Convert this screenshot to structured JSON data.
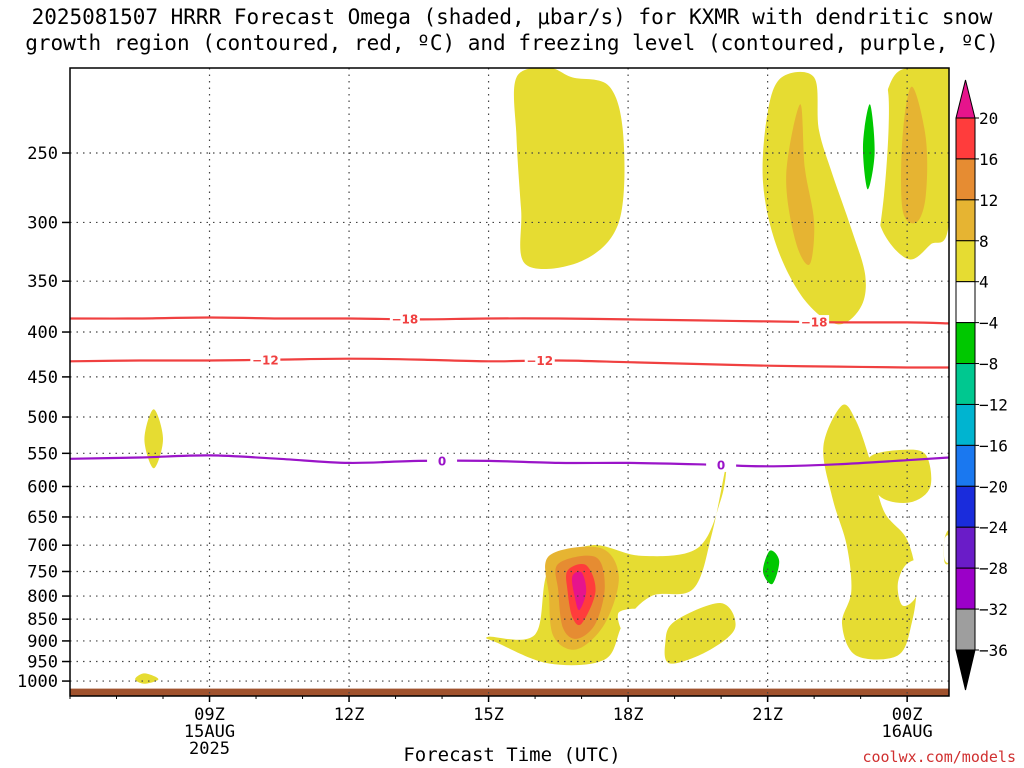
{
  "title": {
    "line1": "2025081507 HRRR Forecast Omega (shaded, μbar/s) for KXMR with dendritic snow",
    "line2": "growth region (contoured, red, ºC) and freezing level (contoured, purple, ºC)"
  },
  "credit": "coolwx.com/models",
  "chart_data": {
    "type": "heatmap",
    "xlabel": "Forecast Time (UTC)",
    "ylabel": "",
    "x_range_hours": [
      6,
      24.9
    ],
    "x_ticks": [
      {
        "hour": 9,
        "line1": "09Z",
        "line2": "15AUG",
        "line3": "2025"
      },
      {
        "hour": 12,
        "line1": "12Z",
        "line2": "",
        "line3": ""
      },
      {
        "hour": 15,
        "line1": "15Z",
        "line2": "",
        "line3": ""
      },
      {
        "hour": 18,
        "line1": "18Z",
        "line2": "",
        "line3": ""
      },
      {
        "hour": 21,
        "line1": "21Z",
        "line2": "",
        "line3": ""
      },
      {
        "hour": 24,
        "line1": "00Z",
        "line2": "16AUG",
        "line3": ""
      }
    ],
    "y_axis": "pressure (hPa), log scale, inverted",
    "y_range": [
      1040,
      200
    ],
    "y_ticks": [
      250,
      300,
      350,
      400,
      450,
      500,
      550,
      600,
      650,
      700,
      750,
      800,
      850,
      900,
      950,
      1000
    ],
    "colorbar": {
      "levels": [
        -36,
        -32,
        -28,
        -24,
        -20,
        -16,
        -12,
        -8,
        -4,
        4,
        8,
        12,
        16,
        20
      ],
      "labels": [
        "20",
        "16",
        "12",
        "8",
        "4",
        "-4",
        "-8",
        "-12",
        "-16",
        "-20",
        "-24",
        "-28",
        "-32",
        "-36"
      ],
      "colors": [
        "#9e9e9e",
        "#9b00c8",
        "#6a1cc8",
        "#1a2cdc",
        "#1a78f0",
        "#00b4d0",
        "#00c890",
        "#00c800",
        "#ffffff",
        "#e6dc32",
        "#e6b432",
        "#e68c32",
        "#ff3c3c",
        "#e6148c"
      ],
      "under_color": "#000000",
      "over_color": "#e6148c"
    },
    "contours": [
      {
        "label": "-18",
        "color": "#f04040",
        "label_hours": [
          13.2,
          22.0
        ],
        "points": [
          [
            6,
            386
          ],
          [
            7.5,
            386
          ],
          [
            9,
            385
          ],
          [
            10.5,
            386
          ],
          [
            12,
            386
          ],
          [
            13.5,
            387
          ],
          [
            15,
            386
          ],
          [
            16.5,
            386
          ],
          [
            18,
            387
          ],
          [
            19.5,
            388
          ],
          [
            21,
            389
          ],
          [
            22.5,
            390
          ],
          [
            24,
            390
          ],
          [
            24.9,
            391
          ]
        ]
      },
      {
        "label": "-12",
        "color": "#f04040",
        "label_hours": [
          10.2,
          16.1
        ],
        "points": [
          [
            6,
            432
          ],
          [
            7.5,
            431
          ],
          [
            9,
            431
          ],
          [
            10.5,
            430
          ],
          [
            12,
            429
          ],
          [
            13.5,
            430
          ],
          [
            15,
            432
          ],
          [
            16.5,
            431
          ],
          [
            18,
            433
          ],
          [
            19.5,
            435
          ],
          [
            21,
            437
          ],
          [
            22.5,
            438
          ],
          [
            24,
            439
          ],
          [
            24.9,
            439
          ]
        ]
      },
      {
        "label": "0",
        "color": "#9a14c8",
        "label_hours": [
          14.0,
          20.0
        ],
        "points": [
          [
            6,
            558
          ],
          [
            7.5,
            556
          ],
          [
            9,
            553
          ],
          [
            10.5,
            558
          ],
          [
            12,
            564
          ],
          [
            13.5,
            561
          ],
          [
            15,
            561
          ],
          [
            16.5,
            564
          ],
          [
            18,
            564
          ],
          [
            19.5,
            566
          ],
          [
            21,
            569
          ],
          [
            22.5,
            566
          ],
          [
            24,
            560
          ],
          [
            24.9,
            556
          ]
        ]
      }
    ],
    "shaded_regions": [
      {
        "value": 4,
        "points": [
          [
            15.6,
            205
          ],
          [
            16.3,
            200
          ],
          [
            16.8,
            205
          ],
          [
            17.6,
            210
          ],
          [
            17.9,
            240
          ],
          [
            17.8,
            300
          ],
          [
            17.0,
            332
          ],
          [
            15.8,
            335
          ],
          [
            15.7,
            290
          ],
          [
            15.6,
            240
          ]
        ]
      },
      {
        "value": 4,
        "points": [
          [
            21.3,
            205
          ],
          [
            22.0,
            205
          ],
          [
            22.1,
            235
          ],
          [
            22.4,
            265
          ],
          [
            22.8,
            305
          ],
          [
            23.1,
            345
          ],
          [
            23.0,
            375
          ],
          [
            22.5,
            392
          ],
          [
            21.8,
            368
          ],
          [
            21.2,
            320
          ],
          [
            20.9,
            270
          ],
          [
            21.0,
            225
          ]
        ]
      },
      {
        "value": 4,
        "points": [
          [
            24.4,
            200
          ],
          [
            24.9,
            200
          ],
          [
            24.9,
            300
          ],
          [
            24.5,
            318
          ],
          [
            24.0,
            330
          ],
          [
            23.4,
            300
          ],
          [
            23.3,
            250
          ],
          [
            23.7,
            205
          ]
        ]
      },
      {
        "value": 4,
        "points": [
          [
            7.8,
            490
          ],
          [
            8.0,
            530
          ],
          [
            7.8,
            572
          ],
          [
            7.6,
            530
          ]
        ]
      },
      {
        "value": 4,
        "points": [
          [
            7.6,
            980
          ],
          [
            7.9,
            995
          ],
          [
            7.6,
            1007
          ],
          [
            7.4,
            995
          ]
        ]
      },
      {
        "value": 4,
        "points": [
          [
            22.6,
            485
          ],
          [
            22.9,
            505
          ],
          [
            23.2,
            560
          ],
          [
            23.5,
            640
          ],
          [
            24.0,
            690
          ],
          [
            24.2,
            770
          ],
          [
            24.1,
            858
          ],
          [
            23.8,
            935
          ],
          [
            22.9,
            935
          ],
          [
            22.6,
            860
          ],
          [
            22.8,
            790
          ],
          [
            22.7,
            700
          ],
          [
            22.4,
            620
          ],
          [
            22.2,
            540
          ]
        ]
      },
      {
        "value": 4,
        "points": [
          [
            23.2,
            555
          ],
          [
            23.9,
            545
          ],
          [
            24.4,
            552
          ],
          [
            24.5,
            600
          ],
          [
            24.1,
            625
          ],
          [
            23.5,
            620
          ],
          [
            23.2,
            590
          ]
        ]
      },
      {
        "value": 4,
        "points": [
          [
            15.0,
            890
          ],
          [
            16.0,
            885
          ],
          [
            16.3,
            745
          ],
          [
            17.2,
            700
          ],
          [
            18.3,
            720
          ],
          [
            19.5,
            705
          ],
          [
            20.0,
            620
          ],
          [
            20.1,
            570
          ],
          [
            19.8,
            680
          ],
          [
            19.4,
            785
          ],
          [
            18.5,
            800
          ],
          [
            17.9,
            860
          ],
          [
            17.5,
            945
          ],
          [
            16.3,
            955
          ],
          [
            15.2,
            905
          ]
        ]
      },
      {
        "value": 4,
        "points": [
          [
            19.0,
            855
          ],
          [
            20.0,
            815
          ],
          [
            20.3,
            870
          ],
          [
            19.7,
            925
          ],
          [
            18.9,
            955
          ],
          [
            18.8,
            905
          ]
        ]
      },
      {
        "value": 4,
        "points": [
          [
            24.8,
            690
          ],
          [
            24.9,
            675
          ],
          [
            24.9,
            730
          ],
          [
            24.8,
            730
          ]
        ]
      },
      {
        "value": 8,
        "points": [
          [
            21.7,
            220
          ],
          [
            21.8,
            260
          ],
          [
            22.0,
            300
          ],
          [
            21.9,
            335
          ],
          [
            21.6,
            315
          ],
          [
            21.4,
            265
          ]
        ]
      },
      {
        "value": 8,
        "points": [
          [
            24.1,
            210
          ],
          [
            24.4,
            240
          ],
          [
            24.4,
            280
          ],
          [
            24.2,
            300
          ],
          [
            23.9,
            290
          ],
          [
            23.9,
            240
          ]
        ]
      },
      {
        "value": 8,
        "points": [
          [
            16.3,
            720
          ],
          [
            17.4,
            705
          ],
          [
            17.8,
            760
          ],
          [
            17.5,
            860
          ],
          [
            16.9,
            920
          ],
          [
            16.4,
            890
          ],
          [
            16.3,
            800
          ]
        ]
      },
      {
        "value": 12,
        "points": [
          [
            16.5,
            735
          ],
          [
            17.3,
            722
          ],
          [
            17.5,
            780
          ],
          [
            17.3,
            860
          ],
          [
            16.9,
            895
          ],
          [
            16.6,
            870
          ],
          [
            16.5,
            790
          ]
        ]
      },
      {
        "value": 16,
        "points": [
          [
            16.7,
            748
          ],
          [
            17.1,
            738
          ],
          [
            17.3,
            790
          ],
          [
            17.0,
            860
          ],
          [
            16.8,
            845
          ],
          [
            16.7,
            790
          ]
        ]
      },
      {
        "value": 20,
        "points": [
          [
            16.8,
            760
          ],
          [
            17.0,
            752
          ],
          [
            17.1,
            790
          ],
          [
            16.95,
            830
          ],
          [
            16.85,
            800
          ]
        ]
      },
      {
        "value": -4,
        "points": [
          [
            16.5,
            550
          ],
          [
            17.2,
            545
          ],
          [
            17.8,
            560
          ],
          [
            18.3,
            605
          ],
          [
            17.9,
            640
          ],
          [
            17.2,
            595
          ],
          [
            16.5,
            582
          ],
          [
            16.4,
            560
          ]
        ]
      },
      {
        "value": -4,
        "points": [
          [
            23.3,
            200
          ],
          [
            23.6,
            215
          ],
          [
            23.5,
            280
          ],
          [
            23.2,
            340
          ],
          [
            22.9,
            285
          ],
          [
            22.8,
            230
          ],
          [
            22.9,
            205
          ]
        ]
      },
      {
        "value": -4,
        "points": [
          [
            19.8,
            320
          ],
          [
            19.9,
            350
          ],
          [
            19.8,
            375
          ],
          [
            20.1,
            420
          ],
          [
            19.9,
            475
          ],
          [
            19.7,
            420
          ],
          [
            19.7,
            370
          ],
          [
            19.6,
            345
          ]
        ]
      },
      {
        "value": -4,
        "points": [
          [
            24.0,
            420
          ],
          [
            24.25,
            440
          ],
          [
            24.0,
            475
          ],
          [
            23.8,
            445
          ]
        ]
      },
      {
        "value": -4,
        "points": [
          [
            20.6,
            700
          ],
          [
            21.0,
            630
          ],
          [
            21.4,
            700
          ],
          [
            21.5,
            780
          ],
          [
            21.1,
            865
          ],
          [
            20.7,
            800
          ],
          [
            20.5,
            730
          ]
        ]
      },
      {
        "value": -4,
        "points": [
          [
            24.0,
            735
          ],
          [
            24.4,
            730
          ],
          [
            24.2,
            800
          ],
          [
            23.9,
            820
          ],
          [
            23.8,
            775
          ]
        ]
      },
      {
        "value": -4,
        "points": [
          [
            8.9,
            735
          ],
          [
            9.0,
            750
          ],
          [
            8.9,
            785
          ],
          [
            8.8,
            760
          ]
        ]
      },
      {
        "value": -4,
        "points": [
          [
            17.8,
            835
          ],
          [
            18.3,
            830
          ],
          [
            18.2,
            870
          ],
          [
            17.9,
            880
          ]
        ]
      },
      {
        "value": -4,
        "points": [
          [
            24.8,
            690
          ],
          [
            24.9,
            685
          ],
          [
            24.9,
            730
          ],
          [
            24.8,
            725
          ]
        ]
      },
      {
        "value": -4,
        "points": [
          [
            14.6,
            965
          ],
          [
            15.5,
            960
          ],
          [
            16.2,
            985
          ],
          [
            15.4,
            1005
          ],
          [
            14.6,
            1005
          ],
          [
            14.5,
            985
          ]
        ]
      },
      {
        "value": -4,
        "points": [
          [
            17.3,
            985
          ],
          [
            18.0,
            975
          ],
          [
            18.5,
            990
          ],
          [
            17.8,
            1008
          ],
          [
            17.3,
            1000
          ]
        ]
      },
      {
        "value": -8,
        "points": [
          [
            21.05,
            710
          ],
          [
            21.25,
            730
          ],
          [
            21.1,
            775
          ],
          [
            20.9,
            750
          ]
        ]
      },
      {
        "value": -8,
        "points": [
          [
            23.2,
            220
          ],
          [
            23.3,
            250
          ],
          [
            23.15,
            275
          ],
          [
            23.05,
            245
          ]
        ]
      }
    ],
    "ground": {
      "color": "#a0522d",
      "pressure": 1020
    }
  }
}
